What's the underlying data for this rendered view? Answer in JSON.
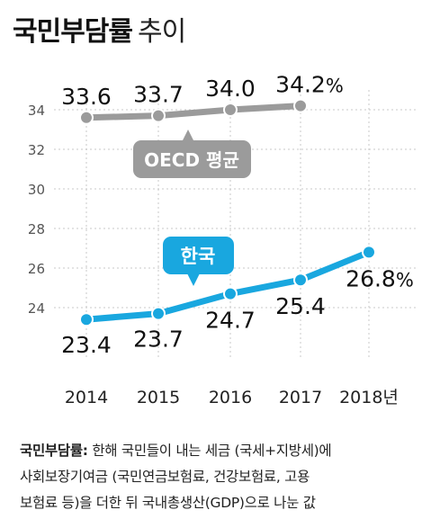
{
  "title": {
    "bold": "국민부담률",
    "light": "추이"
  },
  "chart_data": {
    "type": "line",
    "x": [
      "2014",
      "2015",
      "2016",
      "2017",
      "2018"
    ],
    "x_tick_labels": [
      "2014",
      "2015",
      "2016",
      "2017",
      "2018년"
    ],
    "y_ticks": [
      24,
      26,
      28,
      30,
      32,
      34
    ],
    "ylim": [
      22.5,
      35.5
    ],
    "grid": "horizontal dotted",
    "series": [
      {
        "name": "OECD 평균",
        "color": "#9b9b9b",
        "values": [
          33.6,
          33.7,
          34.0,
          34.2,
          null
        ],
        "labels": [
          "33.6",
          "33.7",
          "34.0",
          "34.2",
          null
        ],
        "last_label_unit": "%"
      },
      {
        "name": "한국",
        "color": "#19a7df",
        "values": [
          23.4,
          23.7,
          24.7,
          25.4,
          26.8
        ],
        "labels": [
          "23.4",
          "23.7",
          "24.7",
          "25.4",
          "26.8"
        ],
        "last_label_unit": "%"
      }
    ]
  },
  "footnote": {
    "label": "국민부담률:",
    "lines": [
      " 한해 국민들이 내는 세금 (국세+지방세)에",
      "사회보장기여금 (국민연금보험료, 건강보험료, 고용",
      "보험료 등)을 더한 뒤 국내총생산(GDP)으로 나눈 값"
    ]
  }
}
